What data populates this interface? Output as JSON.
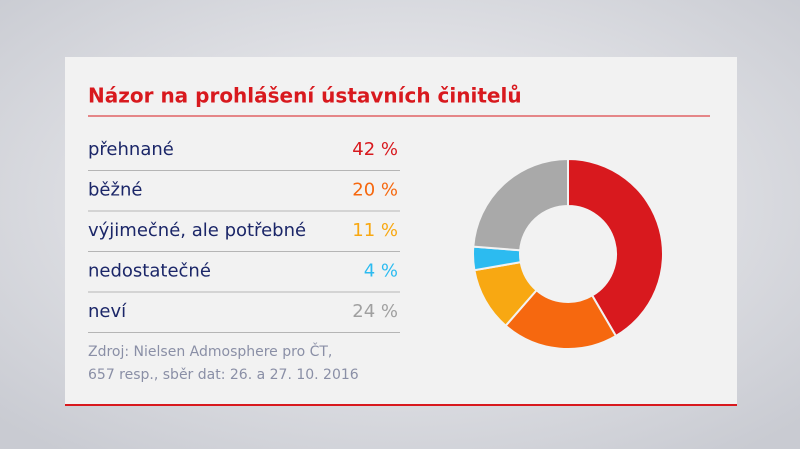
{
  "chart_data": {
    "type": "donut",
    "title": "Názor na prohlášení ústavních činitelů",
    "categories": [
      "přehnané",
      "běžné",
      "výjimečné, ale potřebné",
      "nedostatečné",
      "neví"
    ],
    "values": [
      42,
      20,
      11,
      4,
      24
    ],
    "value_labels": [
      "42 %",
      "20 %",
      "11 %",
      "4 %",
      "24 %"
    ],
    "colors": [
      "#d8191e",
      "#f6680f",
      "#f8a812",
      "#2cbbf0",
      "#a9a9a9"
    ],
    "source": [
      "Zdroj: Nielsen Admosphere pro ČT,",
      "657 resp., sběr dat: 26. a 27. 10. 2016"
    ]
  }
}
